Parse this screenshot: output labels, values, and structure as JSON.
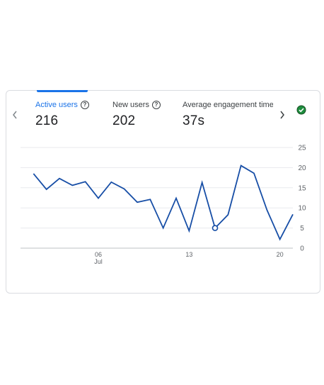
{
  "metrics": [
    {
      "label": "Active users",
      "value": "216"
    },
    {
      "label": "New users",
      "value": "202"
    },
    {
      "label": "Average engagement time p",
      "value": "37s"
    }
  ],
  "icons": {
    "help": "question-mark-circle-icon",
    "status": "check-circle-icon",
    "prev": "chevron-left-icon",
    "next": "chevron-right-icon"
  },
  "colors": {
    "accent": "#1a73e8",
    "line": "#174ea6",
    "status_green": "#1e8e3e"
  },
  "chart_data": {
    "type": "line",
    "series": [
      {
        "values": [
          18.5,
          14.6,
          17.3,
          15.6,
          16.5,
          12.4,
          16.4,
          14.7,
          11.4,
          12.1,
          5.0,
          12.4,
          4.3,
          16.3,
          5.0,
          8.3,
          20.5,
          18.6,
          9.5,
          2.2,
          8.4
        ]
      }
    ],
    "x": [
      1,
      2,
      3,
      4,
      5,
      6,
      7,
      8,
      9,
      10,
      11,
      12,
      13,
      14,
      15,
      16,
      17,
      18,
      19,
      20,
      21
    ],
    "highlight_index": 14,
    "xticks": [
      {
        "x": 6,
        "label": "06",
        "sublabel": "Jul"
      },
      {
        "x": 13,
        "label": "13",
        "sublabel": ""
      },
      {
        "x": 20,
        "label": "20",
        "sublabel": ""
      }
    ],
    "yticks": [
      "0",
      "5",
      "10",
      "15",
      "20",
      "25"
    ],
    "ylim": [
      0,
      25
    ],
    "xlim": [
      0,
      21
    ],
    "grid": true
  }
}
